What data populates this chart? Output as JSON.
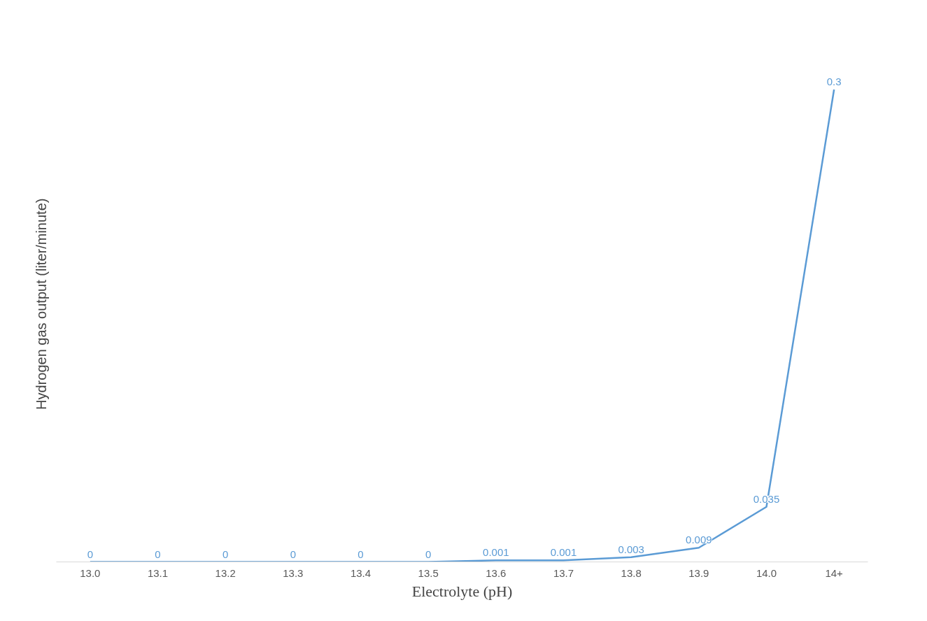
{
  "chart_data": {
    "type": "line",
    "xlabel": "Electrolyte (pH)",
    "ylabel": "Hydrogen gas output  (liter/minute)",
    "categories": [
      "13.0",
      "13.1",
      "13.2",
      "13.3",
      "13.4",
      "13.5",
      "13.6",
      "13.7",
      "13.8",
      "13.9",
      "14.0",
      "14+"
    ],
    "series": [
      {
        "color": "#5b9bd5",
        "values": [
          0,
          0,
          0,
          0,
          0,
          0,
          0.001,
          0.001,
          0.003,
          0.009,
          0.035,
          0.3
        ]
      }
    ],
    "data_labels": true,
    "grid": false,
    "marker": "none",
    "line_style": "solid",
    "tick_labels": "x"
  }
}
